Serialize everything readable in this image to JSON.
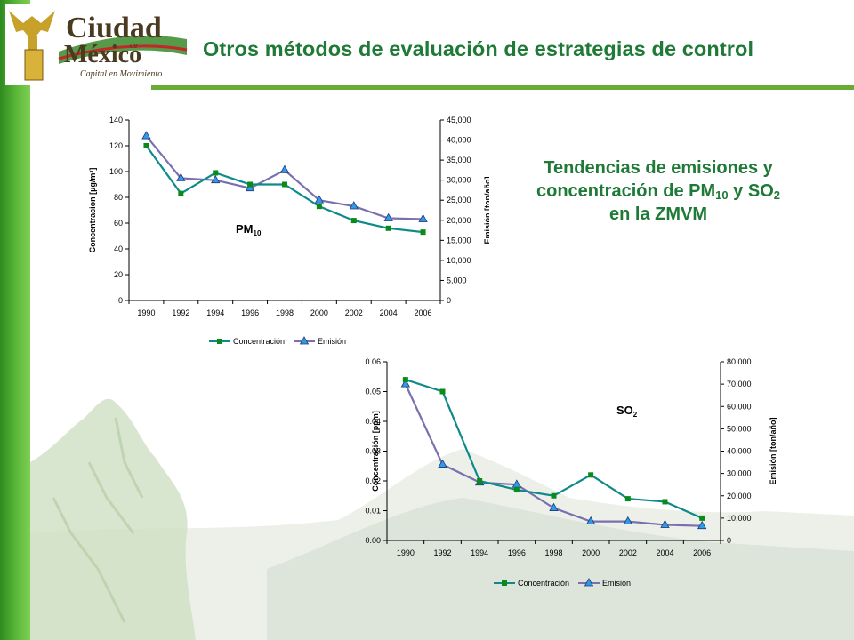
{
  "header": {
    "logo": {
      "line1": "Ciudad",
      "de": "de",
      "line2": "México",
      "tagline": "Capital en Movimiento"
    },
    "title": "Otros métodos de evaluación de estrategias de control"
  },
  "side_heading": {
    "line1": "Tendencias de emisiones y",
    "line2_pre": "concentración de PM",
    "line2_sub1": "10",
    "line2_mid": " y SO",
    "line2_sub2": "2",
    "line3": "en la ZMVM"
  },
  "colors": {
    "brand_green": "#1e7a36",
    "concentration_line": "#0f8a8a",
    "concentration_marker": "#0a8a1a",
    "emission_line": "#7a6fb0",
    "emission_marker": "#3399e6"
  },
  "chart_data": [
    {
      "type": "line",
      "label": "PM",
      "label_sub": "10",
      "x": [
        "1990",
        "1992",
        "1994",
        "1996",
        "1998",
        "2000",
        "2002",
        "2004",
        "2006"
      ],
      "ylabel": "Concentracion [µg/m³]",
      "y2label": "Emisión [ton/año]",
      "ylim": [
        0,
        140
      ],
      "yticks": [
        "0",
        "20",
        "40",
        "60",
        "80",
        "100",
        "120",
        "140"
      ],
      "y2lim": [
        0,
        45000
      ],
      "y2ticks": [
        "0",
        "5,000",
        "10,000",
        "15,000",
        "20,000",
        "25,000",
        "30,000",
        "35,000",
        "40,000",
        "45,000"
      ],
      "legend_position": "bottom",
      "series": [
        {
          "name": "Concentración",
          "axis": "left",
          "values": [
            120,
            83,
            99,
            90,
            90,
            73,
            62,
            56,
            53
          ]
        },
        {
          "name": "Emisión",
          "axis": "right",
          "values": [
            41000,
            30500,
            30000,
            28000,
            32500,
            25000,
            23500,
            20500,
            20300
          ]
        }
      ]
    },
    {
      "type": "line",
      "label": "SO",
      "label_sub": "2",
      "x": [
        "1990",
        "1992",
        "1994",
        "1996",
        "1998",
        "2000",
        "2002",
        "2004",
        "2006"
      ],
      "ylabel": "Concentración [ppm]",
      "y2label": "Emisión [ton/año]",
      "ylim": [
        0,
        0.06
      ],
      "yticks": [
        "0.00",
        "0.01",
        "0.02",
        "0.03",
        "0.04",
        "0.05",
        "0.06"
      ],
      "y2lim": [
        0,
        80000
      ],
      "y2ticks": [
        "0",
        "10,000",
        "20,000",
        "30,000",
        "40,000",
        "50,000",
        "60,000",
        "70,000",
        "80,000"
      ],
      "legend_position": "bottom",
      "series": [
        {
          "name": "Concentración",
          "axis": "left",
          "values": [
            0.054,
            0.05,
            0.02,
            0.017,
            0.015,
            0.022,
            0.014,
            0.013,
            0.0075
          ]
        },
        {
          "name": "Emisión",
          "axis": "right",
          "values": [
            70000,
            34000,
            26000,
            25000,
            14500,
            8500,
            8500,
            7000,
            6500
          ]
        }
      ]
    }
  ]
}
